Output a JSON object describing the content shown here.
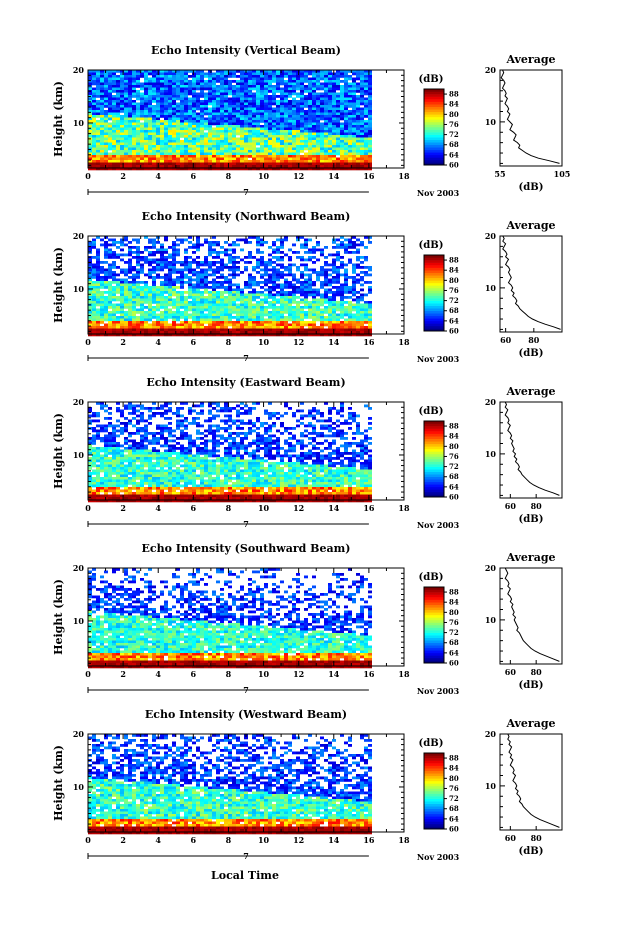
{
  "figure": {
    "xlabel": "Local Time",
    "date_label": "Nov 2003",
    "day_label": "7"
  },
  "chart_data": [
    {
      "type": "heatmap",
      "title": "Echo Intensity (Vertical Beam)",
      "ylabel": "Height (km)",
      "xlabel": "Local Time",
      "xlim": [
        0,
        18
      ],
      "ylim": [
        1.5,
        20
      ],
      "data_xlim": [
        0,
        16
      ],
      "xticks": [
        "0",
        "2",
        "4",
        "6",
        "8",
        "10",
        "12",
        "14",
        "16",
        "18"
      ],
      "yticks": [
        "10",
        "20"
      ],
      "colorbar": {
        "label": "(dB)",
        "ticks": [
          "60",
          "64",
          "68",
          "72",
          "76",
          "80",
          "84",
          "88"
        ],
        "range": [
          60,
          90
        ]
      },
      "profile": {
        "title": "Average",
        "xlabel": "(dB)",
        "xticks": [
          "55",
          "105"
        ],
        "xlim": [
          55,
          105
        ],
        "yticks": [
          "10",
          "20"
        ],
        "x": [
          57,
          58,
          57,
          56,
          58,
          59,
          58,
          57,
          59,
          60,
          59,
          61,
          60,
          59,
          61,
          62,
          61,
          63,
          62,
          61,
          63,
          65,
          64,
          63,
          66,
          68,
          67,
          66,
          69,
          71,
          70,
          73,
          76,
          80,
          86,
          95,
          103
        ],
        "y": [
          20,
          19.5,
          19,
          18.5,
          18,
          17.5,
          17,
          16.5,
          16,
          15.5,
          15,
          14.5,
          14,
          13.5,
          13,
          12.5,
          12,
          11.5,
          11,
          10.5,
          10,
          9.5,
          9,
          8.5,
          8,
          7.5,
          7,
          6.5,
          6,
          5.5,
          5,
          4.5,
          4,
          3.5,
          3,
          2.5,
          2
        ]
      },
      "params": {
        "level": 1.0,
        "gap": 0.02
      }
    },
    {
      "type": "heatmap",
      "title": "Echo Intensity (Northward Beam)",
      "ylabel": "Height (km)",
      "xlabel": "Local Time",
      "xlim": [
        0,
        18
      ],
      "ylim": [
        1.5,
        20
      ],
      "data_xlim": [
        0,
        16
      ],
      "xticks": [
        "0",
        "2",
        "4",
        "6",
        "8",
        "10",
        "12",
        "14",
        "16",
        "18"
      ],
      "yticks": [
        "10",
        "20"
      ],
      "colorbar": {
        "label": "(dB)",
        "ticks": [
          "60",
          "64",
          "68",
          "72",
          "76",
          "80",
          "84",
          "88"
        ],
        "range": [
          60,
          90
        ]
      },
      "profile": {
        "title": "Average",
        "xlabel": "(dB)",
        "xticks": [
          "60",
          "80"
        ],
        "xlim": [
          56,
          100
        ],
        "yticks": [
          "10",
          "20"
        ],
        "x": [
          58,
          59,
          58,
          60,
          59,
          58,
          60,
          61,
          60,
          62,
          61,
          60,
          62,
          63,
          62,
          63,
          64,
          63,
          62,
          64,
          65,
          64,
          66,
          65,
          67,
          68,
          67,
          69,
          70,
          72,
          74,
          76,
          79,
          83,
          88,
          94,
          99
        ],
        "y": [
          20,
          19.5,
          19,
          18.5,
          18,
          17.5,
          17,
          16.5,
          16,
          15.5,
          15,
          14.5,
          14,
          13.5,
          13,
          12.5,
          12,
          11.5,
          11,
          10.5,
          10,
          9.5,
          9,
          8.5,
          8,
          7.5,
          7,
          6.5,
          6,
          5.5,
          5,
          4.5,
          4,
          3.5,
          3,
          2.5,
          2
        ]
      },
      "params": {
        "level": 0.75,
        "gap": 0.22
      }
    },
    {
      "type": "heatmap",
      "title": "Echo Intensity (Eastward Beam)",
      "ylabel": "Height (km)",
      "xlabel": "Local Time",
      "xlim": [
        0,
        18
      ],
      "ylim": [
        1.5,
        20
      ],
      "data_xlim": [
        0,
        16
      ],
      "xticks": [
        "0",
        "2",
        "4",
        "6",
        "8",
        "10",
        "12",
        "14",
        "16",
        "18"
      ],
      "yticks": [
        "10",
        "20"
      ],
      "colorbar": {
        "label": "(dB)",
        "ticks": [
          "60",
          "64",
          "68",
          "72",
          "76",
          "80",
          "84",
          "88"
        ],
        "range": [
          60,
          90
        ]
      },
      "profile": {
        "title": "Average",
        "xlabel": "(dB)",
        "xticks": [
          "60",
          "80"
        ],
        "xlim": [
          52,
          100
        ],
        "yticks": [
          "10",
          "20"
        ],
        "x": [
          56,
          57,
          56,
          58,
          57,
          56,
          58,
          59,
          58,
          60,
          59,
          58,
          60,
          61,
          60,
          62,
          61,
          62,
          63,
          62,
          64,
          63,
          65,
          64,
          66,
          67,
          66,
          68,
          69,
          71,
          73,
          75,
          78,
          82,
          87,
          93,
          98
        ],
        "y": [
          20,
          19.5,
          19,
          18.5,
          18,
          17.5,
          17,
          16.5,
          16,
          15.5,
          15,
          14.5,
          14,
          13.5,
          13,
          12.5,
          12,
          11.5,
          11,
          10.5,
          10,
          9.5,
          9,
          8.5,
          8,
          7.5,
          7,
          6.5,
          6,
          5.5,
          5,
          4.5,
          4,
          3.5,
          3,
          2.5,
          2
        ]
      },
      "params": {
        "level": 0.7,
        "gap": 0.25
      }
    },
    {
      "type": "heatmap",
      "title": "Echo Intensity (Southward Beam)",
      "ylabel": "Height (km)",
      "xlabel": "Local Time",
      "xlim": [
        0,
        18
      ],
      "ylim": [
        1.5,
        20
      ],
      "data_xlim": [
        0,
        16
      ],
      "xticks": [
        "0",
        "2",
        "4",
        "6",
        "8",
        "10",
        "12",
        "14",
        "16",
        "18"
      ],
      "yticks": [
        "10",
        "20"
      ],
      "colorbar": {
        "label": "(dB)",
        "ticks": [
          "60",
          "64",
          "68",
          "72",
          "76",
          "80",
          "84",
          "88"
        ],
        "range": [
          60,
          90
        ]
      },
      "profile": {
        "title": "Average",
        "xlabel": "(dB)",
        "xticks": [
          "60",
          "80"
        ],
        "xlim": [
          52,
          100
        ],
        "yticks": [
          "10",
          "20"
        ],
        "x": [
          56,
          57,
          58,
          57,
          56,
          58,
          59,
          58,
          60,
          59,
          58,
          60,
          61,
          60,
          62,
          61,
          62,
          63,
          62,
          64,
          63,
          64,
          65,
          66,
          65,
          67,
          68,
          69,
          70,
          72,
          74,
          76,
          79,
          83,
          88,
          93,
          98
        ],
        "y": [
          20,
          19.5,
          19,
          18.5,
          18,
          17.5,
          17,
          16.5,
          16,
          15.5,
          15,
          14.5,
          14,
          13.5,
          13,
          12.5,
          12,
          11.5,
          11,
          10.5,
          10,
          9.5,
          9,
          8.5,
          8,
          7.5,
          7,
          6.5,
          6,
          5.5,
          5,
          4.5,
          4,
          3.5,
          3,
          2.5,
          2
        ]
      },
      "params": {
        "level": 0.65,
        "gap": 0.3
      }
    },
    {
      "type": "heatmap",
      "title": "Echo Intensity (Westward Beam)",
      "ylabel": "Height (km)",
      "xlabel": "Local Time",
      "xlim": [
        0,
        18
      ],
      "ylim": [
        1.5,
        20
      ],
      "data_xlim": [
        0,
        16
      ],
      "xticks": [
        "0",
        "2",
        "4",
        "6",
        "8",
        "10",
        "12",
        "14",
        "16",
        "18"
      ],
      "yticks": [
        "10",
        "20"
      ],
      "colorbar": {
        "label": "(dB)",
        "ticks": [
          "60",
          "64",
          "68",
          "72",
          "76",
          "80",
          "84",
          "88"
        ],
        "range": [
          60,
          90
        ]
      },
      "profile": {
        "title": "Average",
        "xlabel": "(dB)",
        "xticks": [
          "60",
          "80"
        ],
        "xlim": [
          52,
          100
        ],
        "yticks": [
          "10",
          "20"
        ],
        "x": [
          58,
          59,
          58,
          60,
          59,
          61,
          60,
          59,
          61,
          60,
          62,
          61,
          60,
          62,
          63,
          62,
          64,
          63,
          62,
          64,
          65,
          64,
          66,
          65,
          67,
          68,
          67,
          69,
          70,
          72,
          74,
          76,
          79,
          83,
          88,
          93,
          98
        ],
        "y": [
          20,
          19.5,
          19,
          18.5,
          18,
          17.5,
          17,
          16.5,
          16,
          15.5,
          15,
          14.5,
          14,
          13.5,
          13,
          12.5,
          12,
          11.5,
          11,
          10.5,
          10,
          9.5,
          9,
          8.5,
          8,
          7.5,
          7,
          6.5,
          6,
          5.5,
          5,
          4.5,
          4,
          3.5,
          3,
          2.5,
          2
        ]
      },
      "params": {
        "level": 0.72,
        "gap": 0.24
      }
    }
  ]
}
